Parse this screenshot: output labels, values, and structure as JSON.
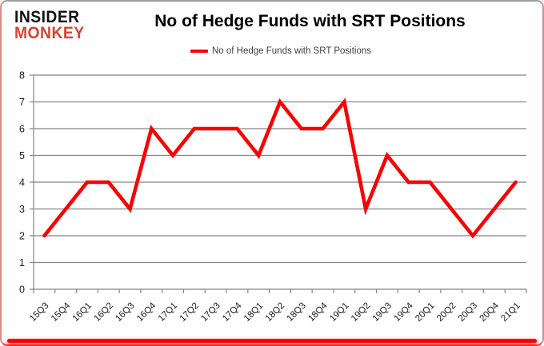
{
  "logo": {
    "line1": "INSIDER",
    "line2": "MONKEY"
  },
  "header": {
    "title": "No of Hedge Funds with SRT Positions"
  },
  "legend": {
    "label": "No of Hedge Funds with SRT Positions"
  },
  "colors": {
    "line": "#fb0000",
    "grid": "#858585",
    "axis": "#858585",
    "axis_text": "#1a1a1a",
    "logo_red": "#d9432f",
    "logo_black": "#131313",
    "bottom_bar": "#fa0000",
    "bottom_bar_glow": "rgba(250,0,0,0.65)",
    "legend_text": "#3f3f3f"
  },
  "chart_data": {
    "type": "line",
    "title": "No of Hedge Funds with SRT Positions",
    "legend_entries": [
      "No of Hedge Funds with SRT Positions"
    ],
    "legend_position": "top",
    "grid": true,
    "categories": [
      "15Q3",
      "15Q4",
      "16Q1",
      "16Q2",
      "16Q3",
      "16Q4",
      "17Q1",
      "17Q2",
      "17Q3",
      "17Q4",
      "18Q1",
      "18Q2",
      "18Q3",
      "18Q4",
      "19Q1",
      "19Q2",
      "19Q3",
      "19Q4",
      "20Q1",
      "20Q2",
      "20Q3",
      "20Q4",
      "21Q1"
    ],
    "series": [
      {
        "name": "No of Hedge Funds with SRT Positions",
        "values": [
          2,
          3,
          4,
          4,
          3,
          6,
          5,
          6,
          6,
          6,
          5,
          7,
          6,
          6,
          7,
          3,
          5,
          4,
          4,
          3,
          2,
          3,
          4
        ]
      }
    ],
    "xlabel": "",
    "ylabel": "",
    "ylim": [
      0,
      8
    ],
    "y_ticks": [
      0,
      1,
      2,
      3,
      4,
      5,
      6,
      7,
      8
    ]
  }
}
